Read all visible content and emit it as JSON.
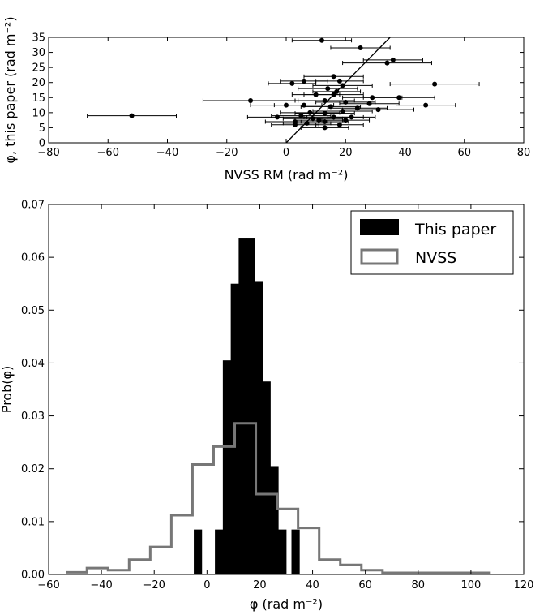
{
  "chart_data": [
    {
      "type": "scatter",
      "xlabel": "NVSS RM (rad m⁻²)",
      "ylabel": "φ, this paper (rad m⁻²)",
      "xlim": [
        -80,
        80
      ],
      "ylim": [
        0,
        35
      ],
      "xticks": [
        -80,
        -60,
        -40,
        -20,
        0,
        20,
        40,
        60,
        80
      ],
      "yticks": [
        0,
        5,
        10,
        15,
        20,
        25,
        30,
        35
      ],
      "xtick_labels": [
        "−80",
        "−60",
        "−40",
        "−20",
        "0",
        "20",
        "40",
        "60",
        "80"
      ],
      "ytick_labels": [
        "0",
        "5",
        "10",
        "15",
        "20",
        "25",
        "30",
        "35"
      ],
      "fit_line": {
        "slope": 1.0,
        "intercept": 0.0
      },
      "points": [
        {
          "x": 12,
          "y": 34,
          "xerr": 10
        },
        {
          "x": 25,
          "y": 31.5,
          "xerr": 10
        },
        {
          "x": 36,
          "y": 27.5,
          "xerr": 10
        },
        {
          "x": 34,
          "y": 26.5,
          "xerr": 15
        },
        {
          "x": 16,
          "y": 22,
          "xerr": 10
        },
        {
          "x": 6,
          "y": 20.5,
          "xerr": 8
        },
        {
          "x": 18,
          "y": 20.5,
          "xerr": 8
        },
        {
          "x": 2,
          "y": 19.7,
          "xerr": 8
        },
        {
          "x": 50,
          "y": 19.5,
          "xerr": 15
        },
        {
          "x": 19,
          "y": 19,
          "xerr": 10
        },
        {
          "x": 14,
          "y": 18,
          "xerr": 10
        },
        {
          "x": 17,
          "y": 17,
          "xerr": 8
        },
        {
          "x": 10,
          "y": 16,
          "xerr": 8
        },
        {
          "x": 16,
          "y": 16,
          "xerr": 10
        },
        {
          "x": 38,
          "y": 15,
          "xerr": 12
        },
        {
          "x": 29,
          "y": 15,
          "xerr": 10
        },
        {
          "x": 13,
          "y": 14,
          "xerr": 10
        },
        {
          "x": -12,
          "y": 14,
          "xerr": 16
        },
        {
          "x": 20,
          "y": 13.5,
          "xerr": 10
        },
        {
          "x": 28,
          "y": 13,
          "xerr": 10
        },
        {
          "x": 47,
          "y": 12.5,
          "xerr": 10
        },
        {
          "x": 6,
          "y": 12.5,
          "xerr": 10
        },
        {
          "x": 0,
          "y": 12.5,
          "xerr": 12
        },
        {
          "x": 15,
          "y": 12,
          "xerr": 10
        },
        {
          "x": 24,
          "y": 11.5,
          "xerr": 10
        },
        {
          "x": 31,
          "y": 11,
          "xerr": 12
        },
        {
          "x": 19,
          "y": 10.5,
          "xerr": 10
        },
        {
          "x": 8,
          "y": 10,
          "xerr": 10
        },
        {
          "x": 13,
          "y": 9.8,
          "xerr": 10
        },
        {
          "x": -52,
          "y": 9,
          "xerr": 15
        },
        {
          "x": 5,
          "y": 9,
          "xerr": 10
        },
        {
          "x": -3,
          "y": 8.5,
          "xerr": 10
        },
        {
          "x": 16,
          "y": 8.5,
          "xerr": 10
        },
        {
          "x": 9,
          "y": 8,
          "xerr": 10
        },
        {
          "x": 22,
          "y": 8.5,
          "xerr": 8
        },
        {
          "x": 11,
          "y": 7.5,
          "xerr": 8
        },
        {
          "x": 3,
          "y": 7,
          "xerr": 10
        },
        {
          "x": 13,
          "y": 7,
          "xerr": 8
        },
        {
          "x": 20,
          "y": 7.5,
          "xerr": 8
        },
        {
          "x": 7,
          "y": 6.5,
          "xerr": 8
        },
        {
          "x": 18,
          "y": 6,
          "xerr": 8
        },
        {
          "x": 3,
          "y": 6,
          "xerr": 8
        },
        {
          "x": 13,
          "y": 5,
          "xerr": 8
        }
      ]
    },
    {
      "type": "bar",
      "xlabel": "φ (rad m⁻²)",
      "ylabel": "Prob(φ)",
      "xlim": [
        -60,
        120
      ],
      "ylim": [
        0,
        0.07
      ],
      "xticks": [
        -60,
        -40,
        -20,
        0,
        20,
        40,
        60,
        80,
        100,
        120
      ],
      "yticks": [
        0,
        0.01,
        0.02,
        0.03,
        0.04,
        0.05,
        0.06,
        0.07
      ],
      "xtick_labels": [
        "−60",
        "−40",
        "−20",
        "0",
        "20",
        "40",
        "60",
        "80",
        "100",
        "120"
      ],
      "ytick_labels": [
        "0.00",
        "0.01",
        "0.02",
        "0.03",
        "0.04",
        "0.05",
        "0.06",
        "0.07"
      ],
      "legend": {
        "placement": "top-right",
        "entries": [
          "This paper",
          "NVSS"
        ]
      },
      "series": [
        {
          "name": "This paper",
          "color": "#000000",
          "style": "filled-histogram",
          "bins": [
            {
              "x0": -5,
              "x1": -2,
              "value": 0.0085
            },
            {
              "x0": 3,
              "x1": 6,
              "value": 0.0085
            },
            {
              "x0": 6,
              "x1": 9,
              "value": 0.0405
            },
            {
              "x0": 9,
              "x1": 12,
              "value": 0.055
            },
            {
              "x0": 12,
              "x1": 15,
              "value": 0.0637
            },
            {
              "x0": 15,
              "x1": 18,
              "value": 0.0637
            },
            {
              "x0": 18,
              "x1": 21,
              "value": 0.0555
            },
            {
              "x0": 21,
              "x1": 24,
              "value": 0.0365
            },
            {
              "x0": 24,
              "x1": 27,
              "value": 0.0205
            },
            {
              "x0": 27,
              "x1": 30,
              "value": 0.0085
            },
            {
              "x0": 30,
              "x1": 32,
              "value": 0.0
            },
            {
              "x0": 32,
              "x1": 35,
              "value": 0.0085
            }
          ]
        },
        {
          "name": "NVSS",
          "color": "#777777",
          "style": "step-histogram",
          "edges": [
            -53.5,
            -45.5,
            -37.5,
            -29.5,
            -21.5,
            -13.5,
            -5.5,
            2.5,
            10.5,
            18.5,
            26.5,
            34.5,
            42.5,
            50.5,
            58.5,
            66.5,
            74.5,
            82.5,
            90.5,
            98.5,
            107.5
          ],
          "values": [
            0.0004,
            0.0012,
            0.0008,
            0.0028,
            0.0052,
            0.0112,
            0.0208,
            0.0242,
            0.0286,
            0.0152,
            0.0124,
            0.0088,
            0.0028,
            0.0018,
            0.0008,
            0.0003,
            0.0003,
            0.0003,
            0.0003,
            0.0003
          ]
        }
      ]
    }
  ]
}
